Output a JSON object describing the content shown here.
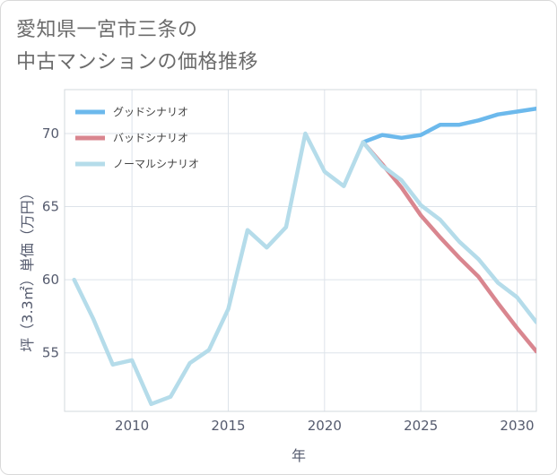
{
  "title": {
    "line1": "愛知県一宮市三条の",
    "line2": "中古マンションの価格推移"
  },
  "chart_data": {
    "type": "line",
    "xlabel": "年",
    "ylabel": "坪（3.3㎡）単価（万円）",
    "xlim": [
      2006.5,
      2031
    ],
    "ylim": [
      51,
      73
    ],
    "xticks": [
      2010,
      2015,
      2020,
      2025,
      2030
    ],
    "yticks": [
      55,
      60,
      65,
      70
    ],
    "grid": true,
    "legend_position": "top-left",
    "series": [
      {
        "name": "グッドシナリオ",
        "color": "#6cb9ec",
        "x": [
          2022,
          2023,
          2024,
          2025,
          2026,
          2027,
          2028,
          2029,
          2030,
          2031
        ],
        "y": [
          69.4,
          69.9,
          69.7,
          69.9,
          70.6,
          70.6,
          70.9,
          71.3,
          71.5,
          71.7
        ]
      },
      {
        "name": "バッドシナリオ",
        "color": "#d9868f",
        "x": [
          2022,
          2023,
          2024,
          2025,
          2026,
          2027,
          2028,
          2029,
          2030,
          2031
        ],
        "y": [
          69.4,
          67.9,
          66.3,
          64.4,
          62.9,
          61.5,
          60.2,
          58.4,
          56.7,
          55.1
        ]
      },
      {
        "name": "ノーマルシナリオ",
        "color": "#b5dcea",
        "x": [
          2007,
          2008,
          2009,
          2010,
          2011,
          2012,
          2013,
          2014,
          2015,
          2016,
          2017,
          2018,
          2019,
          2020,
          2021,
          2022,
          2023,
          2024,
          2025,
          2026,
          2027,
          2028,
          2029,
          2030,
          2031
        ],
        "y": [
          60.0,
          57.3,
          54.2,
          54.5,
          51.5,
          52.0,
          54.3,
          55.2,
          58.0,
          63.4,
          62.2,
          63.6,
          70.0,
          67.4,
          66.4,
          69.4,
          67.8,
          66.8,
          65.1,
          64.1,
          62.6,
          61.4,
          59.8,
          58.8,
          57.1
        ]
      }
    ]
  }
}
